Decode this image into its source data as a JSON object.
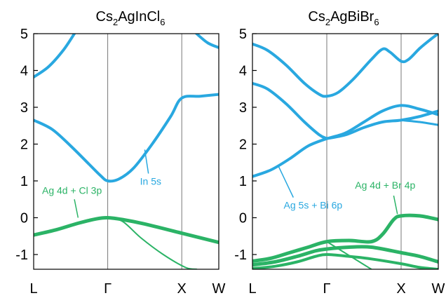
{
  "colors": {
    "blue": "#29a8e0",
    "green": "#2bb366",
    "axis": "#000000",
    "divider": "#777777"
  },
  "chart_data": [
    {
      "type": "line",
      "title_main": "Cs",
      "title_sub1": "2",
      "title_mid": "AgInCl",
      "title_sub2": "6",
      "xlabel": "",
      "ylabel": "",
      "ylim": [
        -1.4,
        5
      ],
      "yticks": [
        "-1",
        "0",
        "1",
        "2",
        "3",
        "4",
        "5"
      ],
      "kpoints": [
        "L",
        "Γ",
        "X",
        "W"
      ],
      "kpos": [
        0,
        1,
        2,
        2.5
      ],
      "annotations": [
        {
          "text": "In 5s",
          "color": "blue",
          "arrow_from": [
            1.55,
            1.2
          ],
          "arrow_to": [
            1.5,
            1.85
          ]
        },
        {
          "text": "Ag 4d + Cl 3p",
          "color": "green",
          "arrow_from": [
            0.55,
            0.5
          ],
          "arrow_to": [
            0.6,
            0
          ]
        }
      ],
      "series": [
        {
          "color": "blue",
          "width": 4,
          "x": [
            0,
            0.2,
            0.4,
            0.55
          ],
          "y": [
            3.82,
            4.1,
            4.55,
            5
          ]
        },
        {
          "color": "blue",
          "width": 4,
          "x": [
            0,
            0.25,
            0.5,
            0.75,
            0.9,
            1.0,
            1.15,
            1.35,
            1.6,
            1.85,
            2.0,
            2.25,
            2.5
          ],
          "y": [
            2.65,
            2.4,
            1.95,
            1.45,
            1.15,
            1.0,
            1.05,
            1.35,
            2.0,
            2.75,
            3.25,
            3.3,
            3.35
          ]
        },
        {
          "color": "blue",
          "width": 4,
          "x": [
            2.2,
            2.35,
            2.5
          ],
          "y": [
            5,
            4.75,
            4.62
          ]
        },
        {
          "color": "green",
          "width": 5,
          "x": [
            0,
            0.3,
            0.6,
            0.85,
            1.0,
            1.2,
            1.5,
            2.0,
            2.5
          ],
          "y": [
            -0.47,
            -0.33,
            -0.15,
            -0.03,
            0,
            -0.05,
            -0.17,
            -0.42,
            -0.67
          ]
        },
        {
          "color": "green",
          "width": 2,
          "x": [
            1.0,
            1.2,
            1.45,
            1.75,
            2.05,
            2.2
          ],
          "y": [
            0,
            -0.1,
            -0.55,
            -1.0,
            -1.35,
            -1.4
          ]
        }
      ]
    },
    {
      "type": "line",
      "title_main": "Cs",
      "title_sub1": "2",
      "title_mid": "AgBiBr",
      "title_sub2": "6",
      "xlabel": "",
      "ylabel": "",
      "ylim": [
        -1.4,
        5
      ],
      "yticks": [
        "-1",
        "0",
        "1",
        "2",
        "3",
        "4",
        "5"
      ],
      "kpoints": [
        "L",
        "Γ",
        "X",
        "W"
      ],
      "kpos": [
        0,
        1,
        2,
        2.5
      ],
      "annotations": [
        {
          "text": "Ag 5s + Bi 6p",
          "color": "blue",
          "arrow_from": [
            0.55,
            0.55
          ],
          "arrow_to": [
            0.35,
            1.4
          ]
        },
        {
          "text": "Ag 4d + Br 4p",
          "color": "green",
          "arrow_from": [
            1.9,
            0.6
          ],
          "arrow_to": [
            1.95,
            0.1
          ]
        }
      ],
      "series": [
        {
          "color": "blue",
          "width": 4,
          "x": [
            0,
            0.2,
            0.45,
            0.7,
            0.9,
            1.0,
            1.15,
            1.35,
            1.6,
            1.75,
            1.85,
            2.0,
            2.1,
            2.25,
            2.4,
            2.5
          ],
          "y": [
            4.72,
            4.55,
            4.15,
            3.65,
            3.35,
            3.3,
            3.4,
            3.75,
            4.3,
            4.58,
            4.5,
            4.25,
            4.3,
            4.6,
            4.85,
            5
          ]
        },
        {
          "color": "blue",
          "width": 4,
          "x": [
            0,
            0.2,
            0.45,
            0.7,
            0.9,
            1.0
          ],
          "y": [
            3.65,
            3.5,
            3.1,
            2.6,
            2.25,
            2.15
          ]
        },
        {
          "color": "blue",
          "width": 4,
          "x": [
            0,
            0.25,
            0.5,
            0.75,
            1.0
          ],
          "y": [
            1.12,
            1.3,
            1.6,
            1.95,
            2.15
          ]
        },
        {
          "color": "blue",
          "width": 4,
          "x": [
            1.0,
            1.25,
            1.5,
            1.75,
            2.0,
            2.25,
            2.5
          ],
          "y": [
            2.15,
            2.3,
            2.6,
            2.9,
            3.05,
            2.95,
            2.8
          ]
        },
        {
          "color": "blue",
          "width": 4,
          "x": [
            1.0,
            1.25,
            1.5,
            1.75,
            2.0,
            2.25,
            2.5
          ],
          "y": [
            2.15,
            2.25,
            2.45,
            2.6,
            2.65,
            2.75,
            2.9
          ]
        },
        {
          "color": "blue",
          "width": 3,
          "x": [
            2.0,
            2.25,
            2.5
          ],
          "y": [
            2.65,
            2.6,
            2.52
          ]
        },
        {
          "color": "green",
          "width": 5,
          "x": [
            0,
            0.25,
            0.5,
            0.75,
            1.0,
            1.3,
            1.6,
            1.75,
            1.9,
            2.0,
            2.25,
            2.5
          ],
          "y": [
            -1.18,
            -1.1,
            -0.95,
            -0.8,
            -0.65,
            -0.62,
            -0.65,
            -0.45,
            -0.05,
            0.05,
            0.05,
            -0.05
          ]
        },
        {
          "color": "green",
          "width": 5,
          "x": [
            0,
            0.3,
            0.6,
            0.85,
            1.0,
            1.3,
            1.6,
            2.0,
            2.25,
            2.5
          ],
          "y": [
            -1.28,
            -1.2,
            -1.05,
            -0.9,
            -0.85,
            -0.8,
            -0.8,
            -0.95,
            -1.05,
            -1.2
          ]
        },
        {
          "color": "green",
          "width": 4,
          "x": [
            0,
            0.3,
            0.6,
            0.85,
            1.0,
            1.3,
            1.6,
            2.0,
            2.25,
            2.5
          ],
          "y": [
            -1.38,
            -1.32,
            -1.2,
            -1.05,
            -1.0,
            -1.05,
            -1.12,
            -1.25,
            -1.35,
            -1.4
          ]
        },
        {
          "color": "green",
          "width": 2,
          "x": [
            1.0,
            1.2,
            1.4,
            1.6
          ],
          "y": [
            -0.65,
            -0.9,
            -1.15,
            -1.4
          ]
        }
      ]
    }
  ]
}
